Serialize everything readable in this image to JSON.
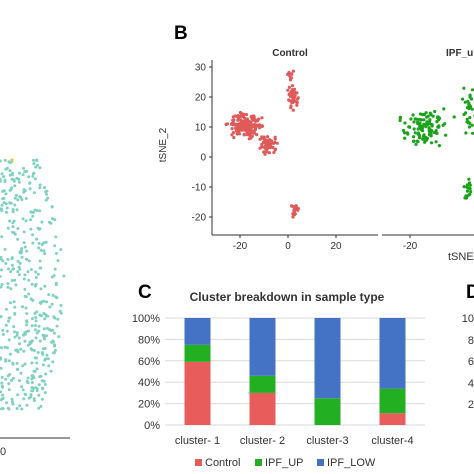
{
  "panels": {
    "b_letter": "B",
    "c_letter": "C",
    "d_letter": "D"
  },
  "panel_a": {
    "x_tick_partial": "0"
  },
  "panel_b": {
    "facet_left_title": "Control",
    "facet_right_title": "IPF_u",
    "ylabel": "tSNE_2",
    "xlabel_partial": "tSNE",
    "y_ticks": [
      "30",
      "20",
      "10",
      "0",
      "-10",
      "-20"
    ],
    "x_ticks": [
      "-20",
      "0",
      "20"
    ],
    "x_ticks_right_partial": [
      "-20"
    ],
    "control_color": "#e05a5a",
    "ipf_color": "#1aa21a"
  },
  "panel_d": {
    "y_ticks_partial": [
      "10",
      "8",
      "6",
      "4",
      "2"
    ]
  },
  "chart_data": {
    "type": "bar",
    "stacked": true,
    "percent": true,
    "title": "Cluster breakdown in sample type",
    "categories": [
      "cluster- 1",
      "cluster- 2",
      "cluster-3",
      "cluster-4"
    ],
    "y_ticks": [
      "100%",
      "80%",
      "60%",
      "40%",
      "20%",
      "0%"
    ],
    "ylim": [
      0,
      100
    ],
    "grid": true,
    "legend_placement": "bottom",
    "series": [
      {
        "name": "Control",
        "values": [
          59,
          30,
          0,
          11
        ],
        "color": "#e85c5c"
      },
      {
        "name": "IPF_UP",
        "values": [
          16,
          16,
          25,
          23
        ],
        "color": "#22b022"
      },
      {
        "name": "IPF_LOW",
        "values": [
          25,
          54,
          75,
          66
        ],
        "color": "#4472c4"
      }
    ]
  }
}
